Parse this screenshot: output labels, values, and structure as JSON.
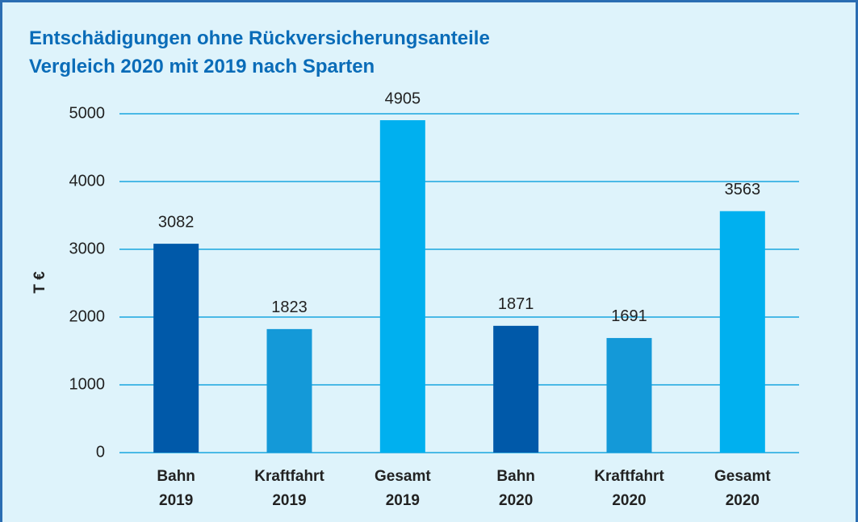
{
  "chart_data": {
    "type": "bar",
    "title": [
      "Entschädigungen ohne Rückversicherungsanteile",
      "Vergleich 2020 mit 2019 nach Sparten"
    ],
    "y_label": "T €",
    "categories": [
      [
        "Bahn",
        "2019"
      ],
      [
        "Kraftfahrt",
        "2019"
      ],
      [
        "Gesamt",
        "2019"
      ],
      [
        "Bahn",
        "2020"
      ],
      [
        "Kraftfahrt",
        "2020"
      ],
      [
        "Gesamt",
        "2020"
      ]
    ],
    "values": [
      3082,
      1823,
      4905,
      1871,
      1691,
      3563
    ],
    "colors": [
      "#0059a9",
      "#1499d8",
      "#00b0ef",
      "#0059a9",
      "#1499d8",
      "#00b0ef"
    ],
    "ylim": [
      0,
      5000
    ],
    "yticks": [
      0,
      1000,
      2000,
      3000,
      4000,
      5000
    ],
    "grid": true
  }
}
